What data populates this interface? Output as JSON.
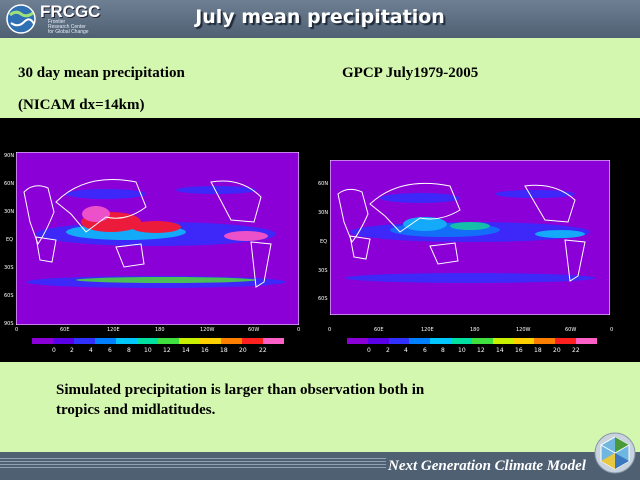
{
  "header": {
    "logo_text": "FRCGC",
    "logo_subtitle": [
      "Frontier",
      "Research Center",
      "for Global Change"
    ],
    "title": "July mean precipitation"
  },
  "left_panel": {
    "heading_line1": "30 day mean precipitation",
    "heading_line2": "(NICAM dx=14km)",
    "lon_ticks": [
      "0",
      "60E",
      "120E",
      "180",
      "120W",
      "60W",
      "0"
    ],
    "lat_ticks": [
      "90N",
      "60N",
      "30N",
      "EQ",
      "30S",
      "60S",
      "90S"
    ],
    "colorbar_labels": [
      "0",
      "2",
      "4",
      "6",
      "8",
      "10",
      "12",
      "14",
      "16",
      "18",
      "20",
      "22"
    ]
  },
  "right_panel": {
    "heading": "GPCP July1979-2005",
    "lon_ticks": [
      "0",
      "60E",
      "120E",
      "180",
      "120W",
      "60W",
      "0"
    ],
    "lat_ticks": [
      "60N",
      "30N",
      "EQ",
      "30S",
      "60S"
    ],
    "colorbar_labels": [
      "0",
      "2",
      "4",
      "6",
      "8",
      "10",
      "12",
      "14",
      "16",
      "18",
      "20",
      "22"
    ]
  },
  "colorbar_colors": [
    "#8c00d8",
    "#5a00e6",
    "#3030ff",
    "#0080ff",
    "#00c8ff",
    "#00e0a0",
    "#40e040",
    "#c8f000",
    "#ffd000",
    "#ff8000",
    "#ff2020",
    "#ff60c8"
  ],
  "caption": {
    "line1": "Simulated precipitation is larger than observation both in",
    "line2": "tropics and midlatitudes."
  },
  "footer": {
    "text": "Next Generation Climate Model"
  }
}
